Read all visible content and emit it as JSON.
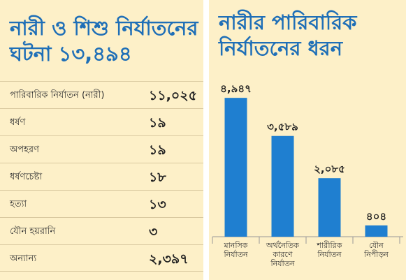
{
  "left_panel": {
    "title": "নারী ও শিশু নির্যাতনের ঘটনা ১৩,৪৯৪",
    "rows": [
      {
        "label": "পারিবারিক নির্যাতন (নারী)",
        "value": "১১,০২৫"
      },
      {
        "label": "ধর্ষণ",
        "value": "১৯"
      },
      {
        "label": "অপহরণ",
        "value": "১৯"
      },
      {
        "label": "ধর্ষণচেষ্টা",
        "value": "১৮"
      },
      {
        "label": "হত্যা",
        "value": "১৩"
      },
      {
        "label": "যৌন হয়রানি",
        "value": "৩"
      },
      {
        "label": "অন্যান্য",
        "value": "২,৩৯৭"
      }
    ]
  },
  "chart_data": {
    "type": "bar",
    "title": "নারীর পারিবারিক নির্যাতনের ধরন",
    "categories": [
      [
        "মানসিক",
        "নির্যাতন"
      ],
      [
        "অর্থনৈতিক",
        "কারণে",
        "নির্যাতন"
      ],
      [
        "শারীরিক",
        "নির্যাতন"
      ],
      [
        "যৌন",
        "নিপীড়ন"
      ]
    ],
    "values": [
      4947,
      3589,
      2085,
      404
    ],
    "value_labels": [
      "৪,৯৪৭",
      "৩,৫৮৯",
      "২,০৮৫",
      "৪০৪"
    ],
    "ylim": [
      0,
      5000
    ],
    "bar_color": "#1f7fd0",
    "grid": false
  }
}
